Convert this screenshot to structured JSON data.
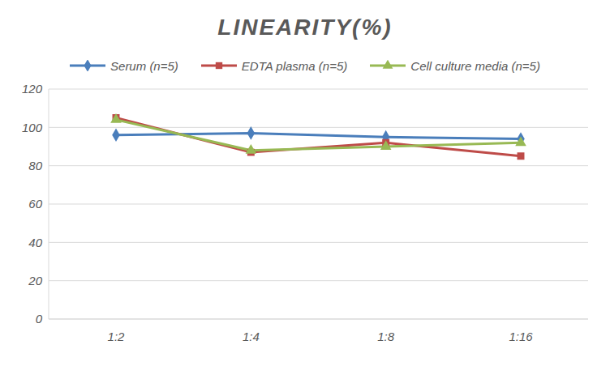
{
  "chart_data": {
    "type": "line",
    "title": "LINEARITY(%)",
    "categories": [
      "1:2",
      "1:4",
      "1:8",
      "1:16"
    ],
    "series": [
      {
        "name": "Serum (n=5)",
        "color": "#4a7ebb",
        "marker": "diamond",
        "values": [
          96,
          97,
          95,
          94
        ]
      },
      {
        "name": "EDTA plasma (n=5)",
        "color": "#be4b48",
        "marker": "square",
        "values": [
          105,
          87,
          92,
          85
        ]
      },
      {
        "name": "Cell culture media (n=5)",
        "color": "#98b954",
        "marker": "triangle",
        "values": [
          104,
          88,
          90,
          92
        ]
      }
    ],
    "ylim": [
      0,
      120
    ],
    "yticks": [
      0,
      20,
      40,
      60,
      80,
      100,
      120
    ],
    "grid": true,
    "legend": "top"
  }
}
